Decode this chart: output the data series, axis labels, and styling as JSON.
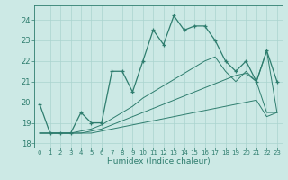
{
  "xlabel": "Humidex (Indice chaleur)",
  "x_values": [
    0,
    1,
    2,
    3,
    4,
    5,
    6,
    7,
    8,
    9,
    10,
    11,
    12,
    13,
    14,
    15,
    16,
    17,
    18,
    19,
    20,
    21,
    22,
    23
  ],
  "main_y": [
    19.9,
    18.5,
    18.5,
    18.5,
    19.5,
    19.0,
    19.0,
    21.5,
    21.5,
    20.5,
    22.0,
    23.5,
    22.8,
    24.2,
    23.5,
    23.7,
    23.7,
    23.0,
    22.0,
    21.5,
    22.0,
    21.0,
    22.5,
    21.0
  ],
  "line2_y": [
    18.5,
    18.5,
    18.5,
    18.5,
    18.6,
    18.7,
    18.9,
    19.2,
    19.5,
    19.8,
    20.2,
    20.5,
    20.8,
    21.1,
    21.4,
    21.7,
    22.0,
    22.2,
    21.5,
    21.0,
    21.5,
    21.0,
    22.5,
    19.5
  ],
  "line3_y": [
    18.5,
    18.5,
    18.5,
    18.5,
    18.5,
    18.6,
    18.7,
    18.9,
    19.1,
    19.3,
    19.5,
    19.7,
    19.9,
    20.1,
    20.3,
    20.5,
    20.7,
    20.9,
    21.1,
    21.3,
    21.4,
    21.0,
    19.5,
    19.5
  ],
  "line4_y": [
    18.5,
    18.5,
    18.5,
    18.5,
    18.5,
    18.5,
    18.6,
    18.7,
    18.8,
    18.9,
    19.0,
    19.1,
    19.2,
    19.3,
    19.4,
    19.5,
    19.6,
    19.7,
    19.8,
    19.9,
    20.0,
    20.1,
    19.3,
    19.5
  ],
  "color": "#2e7d6e",
  "bg_color": "#cce9e5",
  "grid_color": "#aad4cf",
  "ylim": [
    17.8,
    24.7
  ],
  "yticks": [
    18,
    19,
    20,
    21,
    22,
    23,
    24
  ],
  "xlim": [
    -0.5,
    23.5
  ]
}
